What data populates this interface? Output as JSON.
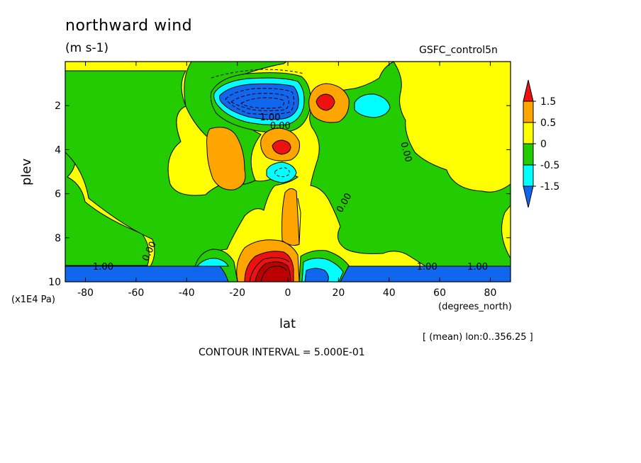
{
  "header": {
    "title": "northward wind",
    "units": "(m s-1)",
    "dataset": "GSFC_control5n"
  },
  "footer": {
    "mean_note": "[ (mean) lon:0..356.25 ]",
    "contour_interval": "CONTOUR INTERVAL = 5.000E-01"
  },
  "chart_data": {
    "type": "heatmap",
    "title": "northward wind",
    "units_label": "(m s-1)",
    "xlabel": "lat",
    "xunits": "(degrees_north)",
    "ylabel": "plev",
    "yunits": "(x1E4 Pa)",
    "xlim": [
      -88,
      88
    ],
    "ylim": [
      0,
      10
    ],
    "y_inverted": true,
    "x_ticks": [
      -80,
      -60,
      -40,
      -20,
      0,
      20,
      40,
      60,
      80
    ],
    "y_ticks": [
      2,
      4,
      6,
      8,
      10
    ],
    "colorbar": {
      "levels": [
        "1.5",
        "0.5",
        "0",
        "-0.5",
        "-1.5"
      ],
      "colors": [
        "#ee1111",
        "#ffa500",
        "#ffff00",
        "#22cc00",
        "#00ffff",
        "#1166ee"
      ]
    },
    "regions": [
      {
        "name": "yellow-background",
        "value": 0.25
      },
      {
        "name": "green-southern",
        "value": -0.25
      },
      {
        "name": "green-northern",
        "value": -0.25
      },
      {
        "name": "blue-surface",
        "value": -2.0
      },
      {
        "name": "orange-blob-west",
        "value": 0.75
      },
      {
        "name": "blue-upper-core",
        "value": -1.75
      },
      {
        "name": "red-upper-north",
        "value": 1.75
      },
      {
        "name": "red-mid",
        "value": 1.75
      },
      {
        "name": "cyan-upper-north",
        "value": -0.75
      },
      {
        "name": "red-surface-core",
        "value": 2.5
      }
    ],
    "contour_labels": [
      {
        "text": "0.00",
        "lat": -3,
        "plev": 2.9
      },
      {
        "text": "0.00",
        "lat": 47,
        "plev": 4.1
      },
      {
        "text": "0.00",
        "lat": 22,
        "plev": 6.4
      },
      {
        "text": "0.00",
        "lat": -55,
        "plev": 8.6
      },
      {
        "text": "1.00",
        "lat": -73,
        "plev": 9.3
      },
      {
        "text": "1.00",
        "lat": 55,
        "plev": 9.3
      },
      {
        "text": "1.00",
        "lat": 75,
        "plev": 9.3
      },
      {
        "text": "1.00",
        "lat": -7,
        "plev": 2.5
      }
    ]
  }
}
